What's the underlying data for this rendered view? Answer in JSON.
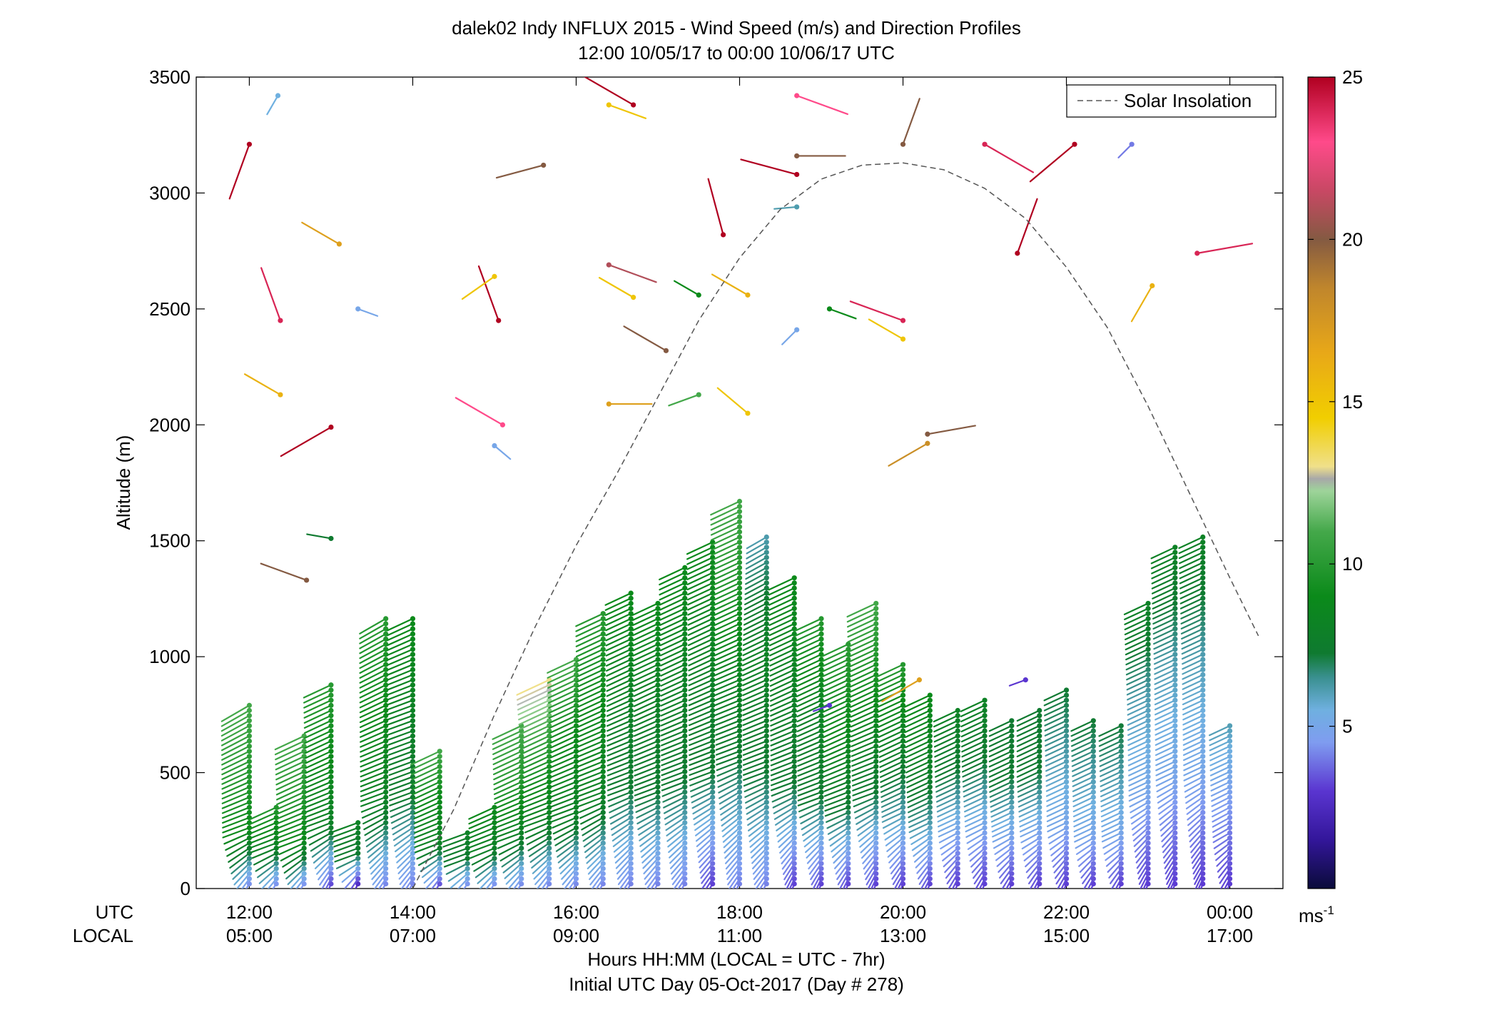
{
  "chart_data": {
    "type": "wind-barb-profile",
    "title": "dalek02 Indy INFLUX 2015 - Wind Speed (m/s) and Direction Profiles",
    "subtitle": "12:00 10/05/17 to 00:00 10/06/17  UTC",
    "ylabel": "Altitude (m)",
    "ylim": [
      0,
      3500
    ],
    "yticks": [
      0,
      500,
      1000,
      1500,
      2000,
      2500,
      3000,
      3500
    ],
    "xlim_hours_utc": [
      11.35,
      24.65
    ],
    "row_labels": {
      "utc": "UTC",
      "local": "LOCAL"
    },
    "xticks": [
      {
        "h": 12,
        "utc": "12:00",
        "local": "05:00"
      },
      {
        "h": 14,
        "utc": "14:00",
        "local": "07:00"
      },
      {
        "h": 16,
        "utc": "16:00",
        "local": "09:00"
      },
      {
        "h": 18,
        "utc": "18:00",
        "local": "11:00"
      },
      {
        "h": 20,
        "utc": "20:00",
        "local": "13:00"
      },
      {
        "h": 22,
        "utc": "22:00",
        "local": "15:00"
      },
      {
        "h": 24,
        "utc": "00:00",
        "local": "17:00"
      }
    ],
    "xlabel_line1": "Hours HH:MM  (LOCAL = UTC - 7hr)",
    "xlabel_line2": "Initial UTC Day 05-Oct-2017 (Day # 278)",
    "legend": {
      "label": "Solar Insolation",
      "position": "top-right"
    },
    "colorbar": {
      "min": 0,
      "max": 25,
      "ticks": [
        5,
        10,
        15,
        20,
        25
      ],
      "unit_label": "ms",
      "unit_exponent": "-1"
    },
    "solar_curve": [
      [
        14.0,
        0
      ],
      [
        14.5,
        340
      ],
      [
        15.0,
        750
      ],
      [
        15.5,
        1130
      ],
      [
        16.0,
        1480
      ],
      [
        16.5,
        1790
      ],
      [
        17.0,
        2120
      ],
      [
        17.5,
        2450
      ],
      [
        18.0,
        2720
      ],
      [
        18.5,
        2930
      ],
      [
        19.0,
        3060
      ],
      [
        19.5,
        3120
      ],
      [
        20.0,
        3130
      ],
      [
        20.5,
        3100
      ],
      [
        21.0,
        3020
      ],
      [
        21.5,
        2890
      ],
      [
        22.0,
        2680
      ],
      [
        22.5,
        2420
      ],
      [
        23.0,
        2080
      ],
      [
        23.5,
        1710
      ],
      [
        24.0,
        1340
      ],
      [
        24.35,
        1090
      ]
    ],
    "profiles": [
      {
        "h": 12.0,
        "top": 790,
        "spd": [
          4,
          9,
          10,
          11
        ],
        "dir": [
          210,
          250,
          245,
          240
        ]
      },
      {
        "h": 12.33,
        "top": 370,
        "spd": [
          4,
          8,
          10
        ],
        "dir": [
          210,
          250,
          245
        ]
      },
      {
        "h": 12.67,
        "top": 660,
        "spd": [
          4,
          9,
          10,
          11
        ],
        "dir": [
          210,
          250,
          245,
          245
        ]
      },
      {
        "h": 13.0,
        "top": 880,
        "spd": [
          3,
          8,
          9,
          10
        ],
        "dir": [
          200,
          250,
          245,
          245
        ]
      },
      {
        "h": 13.33,
        "top": 290,
        "spd": [
          2,
          7,
          8
        ],
        "dir": [
          200,
          250,
          250
        ]
      },
      {
        "h": 13.67,
        "top": 1170,
        "spd": [
          4,
          8,
          9,
          10
        ],
        "dir": [
          210,
          250,
          245,
          240
        ]
      },
      {
        "h": 14.0,
        "top": 1170,
        "spd": [
          4,
          7,
          8,
          9
        ],
        "dir": [
          210,
          250,
          250,
          245
        ]
      },
      {
        "h": 14.33,
        "top": 600,
        "spd": [
          3,
          8,
          9,
          11
        ],
        "dir": [
          210,
          250,
          245,
          245
        ]
      },
      {
        "h": 14.67,
        "top": 260,
        "spd": [
          4,
          7,
          8
        ],
        "dir": [
          210,
          250,
          250
        ]
      },
      {
        "h": 15.0,
        "top": 370,
        "spd": [
          4,
          8,
          9
        ],
        "dir": [
          210,
          250,
          245
        ]
      },
      {
        "h": 15.33,
        "top": 720,
        "spd": [
          4,
          8,
          10,
          11
        ],
        "dir": [
          210,
          250,
          245,
          245
        ]
      },
      {
        "h": 15.67,
        "top": 900,
        "spd": [
          4,
          8,
          10,
          13
        ],
        "dir": [
          210,
          250,
          245,
          245
        ]
      },
      {
        "h": 16.0,
        "top": 1000,
        "spd": [
          4,
          8,
          9,
          11
        ],
        "dir": [
          210,
          250,
          245,
          245
        ]
      },
      {
        "h": 16.33,
        "top": 1200,
        "spd": [
          4,
          8,
          9,
          10
        ],
        "dir": [
          210,
          250,
          245,
          245
        ]
      },
      {
        "h": 16.67,
        "top": 1290,
        "spd": [
          4,
          7,
          8,
          9
        ],
        "dir": [
          210,
          250,
          245,
          245
        ]
      },
      {
        "h": 17.0,
        "top": 1250,
        "spd": [
          4,
          7,
          8,
          9
        ],
        "dir": [
          210,
          250,
          245,
          245
        ]
      },
      {
        "h": 17.33,
        "top": 1400,
        "spd": [
          4,
          7,
          8,
          9
        ],
        "dir": [
          210,
          250,
          245,
          245
        ]
      },
      {
        "h": 17.67,
        "top": 1500,
        "spd": [
          3,
          7,
          8,
          9
        ],
        "dir": [
          210,
          250,
          245,
          245
        ]
      },
      {
        "h": 18.0,
        "top": 1690,
        "spd": [
          4,
          7,
          9,
          11
        ],
        "dir": [
          210,
          250,
          245,
          245
        ]
      },
      {
        "h": 18.33,
        "top": 1520,
        "spd": [
          4,
          7,
          8,
          6
        ],
        "dir": [
          210,
          250,
          245,
          240
        ]
      },
      {
        "h": 18.67,
        "top": 1350,
        "spd": [
          3,
          7,
          8,
          9
        ],
        "dir": [
          200,
          250,
          245,
          245
        ]
      },
      {
        "h": 19.0,
        "top": 1180,
        "spd": [
          3,
          7,
          8,
          10
        ],
        "dir": [
          200,
          250,
          245,
          245
        ]
      },
      {
        "h": 19.33,
        "top": 1060,
        "spd": [
          3,
          7,
          9,
          10
        ],
        "dir": [
          200,
          250,
          245,
          245
        ]
      },
      {
        "h": 19.67,
        "top": 1250,
        "spd": [
          3,
          7,
          9,
          11
        ],
        "dir": [
          200,
          250,
          245,
          245
        ]
      },
      {
        "h": 20.0,
        "top": 980,
        "spd": [
          3,
          6,
          8,
          10
        ],
        "dir": [
          200,
          245,
          245,
          245
        ]
      },
      {
        "h": 20.33,
        "top": 840,
        "spd": [
          3,
          6,
          8,
          9
        ],
        "dir": [
          200,
          245,
          245,
          245
        ]
      },
      {
        "h": 20.67,
        "top": 770,
        "spd": [
          3,
          5,
          7,
          8
        ],
        "dir": [
          200,
          245,
          245,
          245
        ]
      },
      {
        "h": 21.0,
        "top": 820,
        "spd": [
          3,
          5,
          7,
          8
        ],
        "dir": [
          200,
          245,
          245,
          245
        ]
      },
      {
        "h": 21.33,
        "top": 730,
        "spd": [
          3,
          5,
          7,
          7
        ],
        "dir": [
          200,
          245,
          245,
          245
        ]
      },
      {
        "h": 21.67,
        "top": 770,
        "spd": [
          3,
          5,
          7,
          7
        ],
        "dir": [
          200,
          245,
          245,
          245
        ]
      },
      {
        "h": 22.0,
        "top": 860,
        "spd": [
          3,
          5,
          6,
          7
        ],
        "dir": [
          200,
          245,
          245,
          245
        ]
      },
      {
        "h": 22.33,
        "top": 730,
        "spd": [
          3,
          5,
          6,
          7
        ],
        "dir": [
          200,
          245,
          245,
          245
        ]
      },
      {
        "h": 22.67,
        "top": 720,
        "spd": [
          3,
          5,
          6,
          7
        ],
        "dir": [
          200,
          245,
          245,
          245
        ]
      },
      {
        "h": 23.0,
        "top": 1250,
        "spd": [
          3,
          5,
          6,
          8
        ],
        "dir": [
          200,
          245,
          245,
          245
        ]
      },
      {
        "h": 23.33,
        "top": 1480,
        "spd": [
          3,
          5,
          6,
          8
        ],
        "dir": [
          200,
          245,
          245,
          245
        ]
      },
      {
        "h": 23.67,
        "top": 1520,
        "spd": [
          3,
          5,
          6,
          8
        ],
        "dir": [
          200,
          245,
          245,
          245
        ]
      },
      {
        "h": 24.0,
        "top": 720,
        "spd": [
          3,
          4,
          5,
          6
        ],
        "dir": [
          200,
          240,
          245,
          245
        ]
      }
    ],
    "scattered": [
      {
        "h": 12.0,
        "z": 3210,
        "spd": 25,
        "dir": 200
      },
      {
        "h": 12.35,
        "z": 3420,
        "spd": 5.5,
        "dir": 210
      },
      {
        "h": 12.38,
        "z": 2450,
        "spd": 24,
        "dir": 340
      },
      {
        "h": 12.38,
        "z": 2130,
        "spd": 16,
        "dir": 300
      },
      {
        "h": 13.0,
        "z": 1990,
        "spd": 25,
        "dir": 240
      },
      {
        "h": 13.1,
        "z": 2780,
        "spd": 17,
        "dir": 300
      },
      {
        "h": 13.33,
        "z": 2500,
        "spd": 5,
        "dir": 110
      },
      {
        "h": 13.0,
        "z": 1510,
        "spd": 7,
        "dir": 280
      },
      {
        "h": 12.7,
        "z": 1330,
        "spd": 20,
        "dir": 290
      },
      {
        "h": 15.05,
        "z": 2450,
        "spd": 25,
        "dir": 340
      },
      {
        "h": 15.1,
        "z": 2000,
        "spd": 23,
        "dir": 300
      },
      {
        "h": 15.0,
        "z": 1910,
        "spd": 5,
        "dir": 130
      },
      {
        "h": 15.0,
        "z": 2640,
        "spd": 15,
        "dir": 235
      },
      {
        "h": 15.6,
        "z": 3120,
        "spd": 20,
        "dir": 255
      },
      {
        "h": 16.4,
        "z": 3380,
        "spd": 15,
        "dir": 110
      },
      {
        "h": 16.7,
        "z": 3380,
        "spd": 25,
        "dir": 300
      },
      {
        "h": 16.4,
        "z": 2690,
        "spd": 21,
        "dir": 110
      },
      {
        "h": 16.7,
        "z": 2550,
        "spd": 15,
        "dir": 300
      },
      {
        "h": 17.1,
        "z": 2320,
        "spd": 20,
        "dir": 300
      },
      {
        "h": 16.4,
        "z": 2090,
        "spd": 17,
        "dir": 90
      },
      {
        "h": 17.5,
        "z": 2560,
        "spd": 9,
        "dir": 300
      },
      {
        "h": 17.5,
        "z": 2130,
        "spd": 11,
        "dir": 250
      },
      {
        "h": 17.8,
        "z": 2820,
        "spd": 25,
        "dir": 345
      },
      {
        "h": 18.1,
        "z": 2560,
        "spd": 16,
        "dir": 300
      },
      {
        "h": 18.1,
        "z": 2050,
        "spd": 15,
        "dir": 310
      },
      {
        "h": 18.7,
        "z": 2410,
        "spd": 5,
        "dir": 225
      },
      {
        "h": 18.7,
        "z": 2940,
        "spd": 6,
        "dir": 265
      },
      {
        "h": 18.7,
        "z": 3080,
        "spd": 25,
        "dir": 285
      },
      {
        "h": 18.7,
        "z": 3160,
        "spd": 20,
        "dir": 90
      },
      {
        "h": 18.7,
        "z": 3420,
        "spd": 23,
        "dir": 110
      },
      {
        "h": 19.1,
        "z": 2500,
        "spd": 9,
        "dir": 110
      },
      {
        "h": 20.0,
        "z": 3210,
        "spd": 20,
        "dir": 20
      },
      {
        "h": 20.0,
        "z": 2450,
        "spd": 24,
        "dir": 290
      },
      {
        "h": 20.0,
        "z": 2370,
        "spd": 15,
        "dir": 300
      },
      {
        "h": 20.3,
        "z": 1920,
        "spd": 18,
        "dir": 240
      },
      {
        "h": 20.3,
        "z": 1960,
        "spd": 20,
        "dir": 80
      },
      {
        "h": 21.0,
        "z": 3210,
        "spd": 24,
        "dir": 120
      },
      {
        "h": 21.4,
        "z": 2740,
        "spd": 25,
        "dir": 20
      },
      {
        "h": 22.1,
        "z": 3210,
        "spd": 25,
        "dir": 230
      },
      {
        "h": 22.8,
        "z": 3210,
        "spd": 4,
        "dir": 225
      },
      {
        "h": 23.05,
        "z": 2600,
        "spd": 16,
        "dir": 210
      },
      {
        "h": 23.6,
        "z": 2740,
        "spd": 24,
        "dir": 80
      },
      {
        "h": 20.2,
        "z": 900,
        "spd": 17,
        "dir": 240
      },
      {
        "h": 19.1,
        "z": 790,
        "spd": 3,
        "dir": 250
      },
      {
        "h": 21.5,
        "z": 900,
        "spd": 3,
        "dir": 250
      }
    ]
  }
}
